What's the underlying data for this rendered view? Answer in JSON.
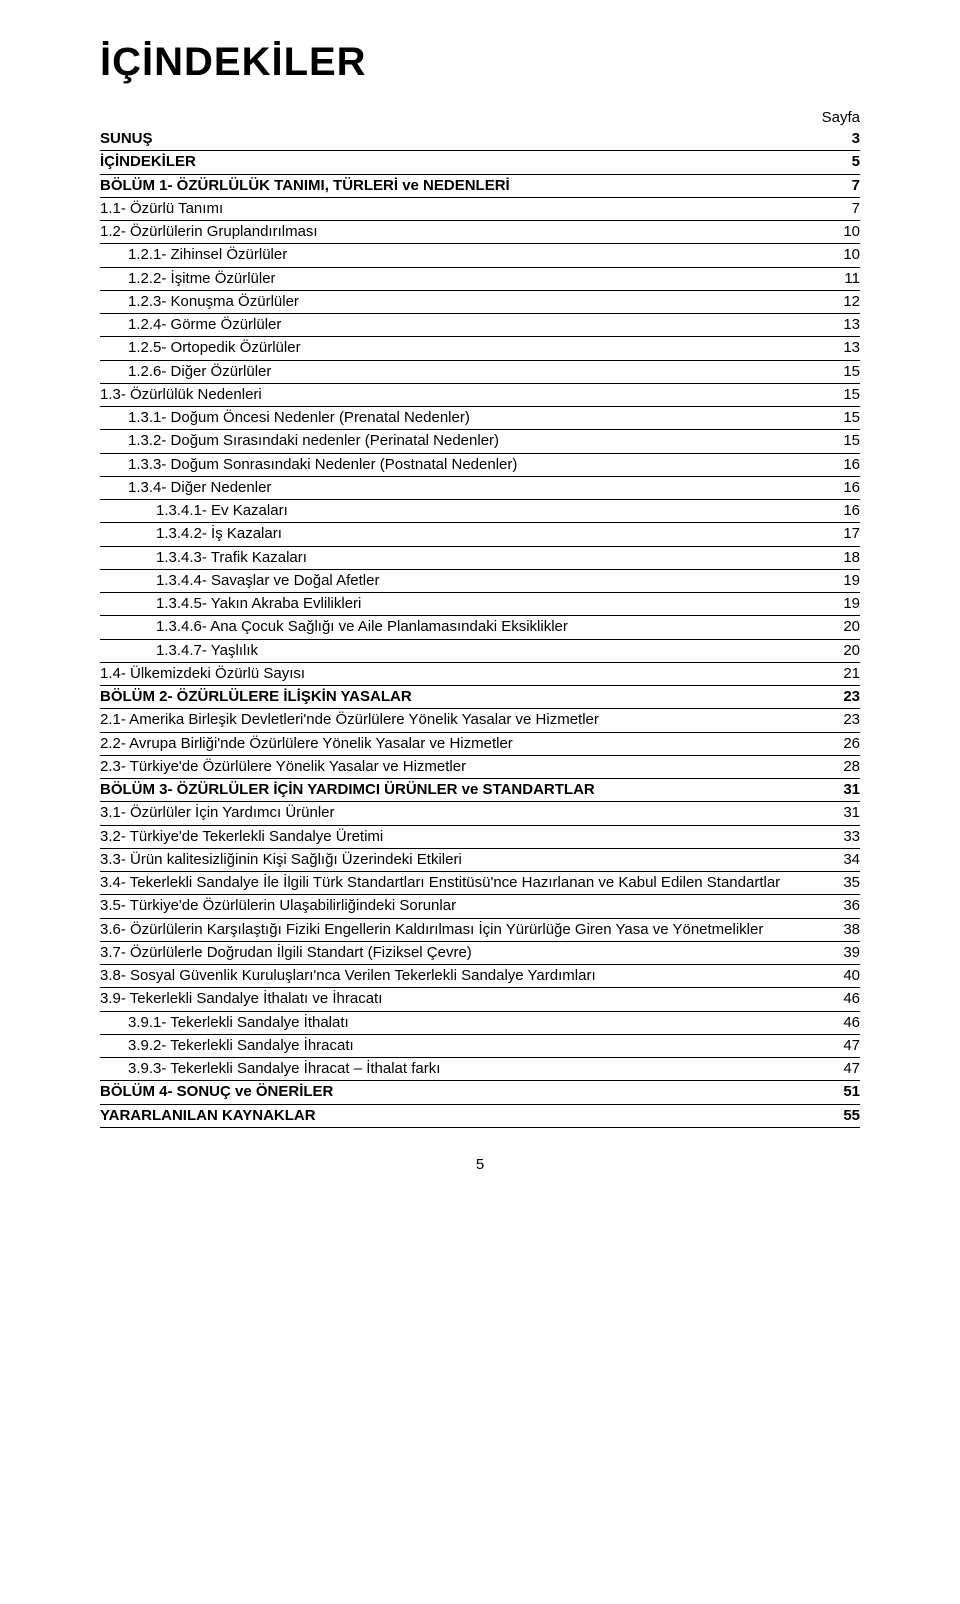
{
  "title": "İÇİNDEKİLER",
  "page_column_header": "Sayfa",
  "footer_page_number": "5",
  "toc": [
    {
      "label": "SUNUŞ",
      "page": "3",
      "bold": true,
      "indent": 0
    },
    {
      "label": "İÇİNDEKİLER",
      "page": "5",
      "bold": true,
      "indent": 0
    },
    {
      "label": "BÖLÜM 1- ÖZÜRLÜLÜK TANIMI, TÜRLERİ ve NEDENLERİ",
      "page": "7",
      "bold": true,
      "indent": 0
    },
    {
      "label": "1.1- Özürlü Tanımı",
      "page": "7",
      "bold": false,
      "indent": 0
    },
    {
      "label": "1.2- Özürlülerin Gruplandırılması",
      "page": "10",
      "bold": false,
      "indent": 0
    },
    {
      "label": "1.2.1- Zihinsel Özürlüler",
      "page": "10",
      "bold": false,
      "indent": 1
    },
    {
      "label": "1.2.2- İşitme Özürlüler",
      "page": "11",
      "bold": false,
      "indent": 1
    },
    {
      "label": "1.2.3- Konuşma Özürlüler",
      "page": "12",
      "bold": false,
      "indent": 1
    },
    {
      "label": "1.2.4- Görme Özürlüler",
      "page": "13",
      "bold": false,
      "indent": 1
    },
    {
      "label": "1.2.5- Ortopedik Özürlüler",
      "page": "13",
      "bold": false,
      "indent": 1
    },
    {
      "label": "1.2.6- Diğer Özürlüler",
      "page": "15",
      "bold": false,
      "indent": 1
    },
    {
      "label": "1.3- Özürlülük Nedenleri",
      "page": "15",
      "bold": false,
      "indent": 0
    },
    {
      "label": "1.3.1- Doğum Öncesi Nedenler (Prenatal Nedenler)",
      "page": "15",
      "bold": false,
      "indent": 1
    },
    {
      "label": "1.3.2- Doğum Sırasındaki nedenler (Perinatal Nedenler)",
      "page": "15",
      "bold": false,
      "indent": 1
    },
    {
      "label": "1.3.3- Doğum Sonrasındaki Nedenler (Postnatal Nedenler)",
      "page": "16",
      "bold": false,
      "indent": 1
    },
    {
      "label": "1.3.4- Diğer Nedenler",
      "page": "16",
      "bold": false,
      "indent": 1
    },
    {
      "label": "1.3.4.1- Ev Kazaları",
      "page": "16",
      "bold": false,
      "indent": 2
    },
    {
      "label": "1.3.4.2- İş Kazaları",
      "page": "17",
      "bold": false,
      "indent": 2
    },
    {
      "label": "1.3.4.3- Trafik Kazaları",
      "page": "18",
      "bold": false,
      "indent": 2
    },
    {
      "label": "1.3.4.4- Savaşlar ve Doğal Afetler",
      "page": "19",
      "bold": false,
      "indent": 2
    },
    {
      "label": "1.3.4.5- Yakın Akraba Evlilikleri",
      "page": "19",
      "bold": false,
      "indent": 2
    },
    {
      "label": "1.3.4.6- Ana Çocuk Sağlığı ve Aile Planlamasındaki Eksiklikler",
      "page": "20",
      "bold": false,
      "indent": 2
    },
    {
      "label": "1.3.4.7- Yaşlılık",
      "page": "20",
      "bold": false,
      "indent": 2
    },
    {
      "label": "1.4- Ülkemizdeki Özürlü Sayısı",
      "page": "21",
      "bold": false,
      "indent": 0
    },
    {
      "label": "BÖLÜM 2- ÖZÜRLÜLERE İLİŞKİN YASALAR",
      "page": "23",
      "bold": true,
      "indent": 0
    },
    {
      "label": "2.1- Amerika Birleşik Devletleri'nde Özürlülere Yönelik Yasalar ve Hizmetler",
      "page": "23",
      "bold": false,
      "indent": 0
    },
    {
      "label": "2.2- Avrupa Birliği'nde Özürlülere Yönelik Yasalar ve Hizmetler",
      "page": "26",
      "bold": false,
      "indent": 0
    },
    {
      "label": "2.3- Türkiye'de Özürlülere Yönelik Yasalar ve Hizmetler",
      "page": "28",
      "bold": false,
      "indent": 0
    },
    {
      "label": "BÖLÜM 3- ÖZÜRLÜLER İÇİN YARDIMCI ÜRÜNLER ve STANDARTLAR",
      "page": "31",
      "bold": true,
      "indent": 0
    },
    {
      "label": "3.1- Özürlüler İçin Yardımcı Ürünler",
      "page": "31",
      "bold": false,
      "indent": 0
    },
    {
      "label": "3.2- Türkiye'de Tekerlekli Sandalye Üretimi",
      "page": "33",
      "bold": false,
      "indent": 0
    },
    {
      "label": "3.3- Ürün kalitesizliğinin Kişi Sağlığı Üzerindeki Etkileri",
      "page": "34",
      "bold": false,
      "indent": 0
    },
    {
      "label": "3.4- Tekerlekli Sandalye İle İlgili Türk Standartları Enstitüsü'nce Hazırlanan ve Kabul Edilen Standartlar",
      "page": "35",
      "bold": false,
      "indent": 0,
      "hanging": true
    },
    {
      "label": "3.5- Türkiye'de Özürlülerin Ulaşabilirliğindeki Sorunlar",
      "page": "36",
      "bold": false,
      "indent": 0
    },
    {
      "label": "3.6- Özürlülerin Karşılaştığı Fiziki Engellerin Kaldırılması İçin Yürürlüğe Giren Yasa ve Yönetmelikler",
      "page": "38",
      "bold": false,
      "indent": 0,
      "hanging": true
    },
    {
      "label": "3.7- Özürlülerle Doğrudan İlgili Standart (Fiziksel Çevre)",
      "page": "39",
      "bold": false,
      "indent": 0
    },
    {
      "label": "3.8- Sosyal Güvenlik Kuruluşları'nca Verilen Tekerlekli Sandalye Yardımları",
      "page": "40",
      "bold": false,
      "indent": 0
    },
    {
      "label": "3.9- Tekerlekli Sandalye İthalatı ve İhracatı",
      "page": "46",
      "bold": false,
      "indent": 0
    },
    {
      "label": "3.9.1- Tekerlekli Sandalye İthalatı",
      "page": "46",
      "bold": false,
      "indent": 1
    },
    {
      "label": "3.9.2- Tekerlekli Sandalye İhracatı",
      "page": "47",
      "bold": false,
      "indent": 1
    },
    {
      "label": "3.9.3- Tekerlekli Sandalye İhracat – İthalat farkı",
      "page": "47",
      "bold": false,
      "indent": 1
    },
    {
      "label": "BÖLÜM 4- SONUÇ ve ÖNERİLER",
      "page": "51",
      "bold": true,
      "indent": 0
    },
    {
      "label": "YARARLANILAN KAYNAKLAR",
      "page": "55",
      "bold": true,
      "indent": 0
    }
  ]
}
